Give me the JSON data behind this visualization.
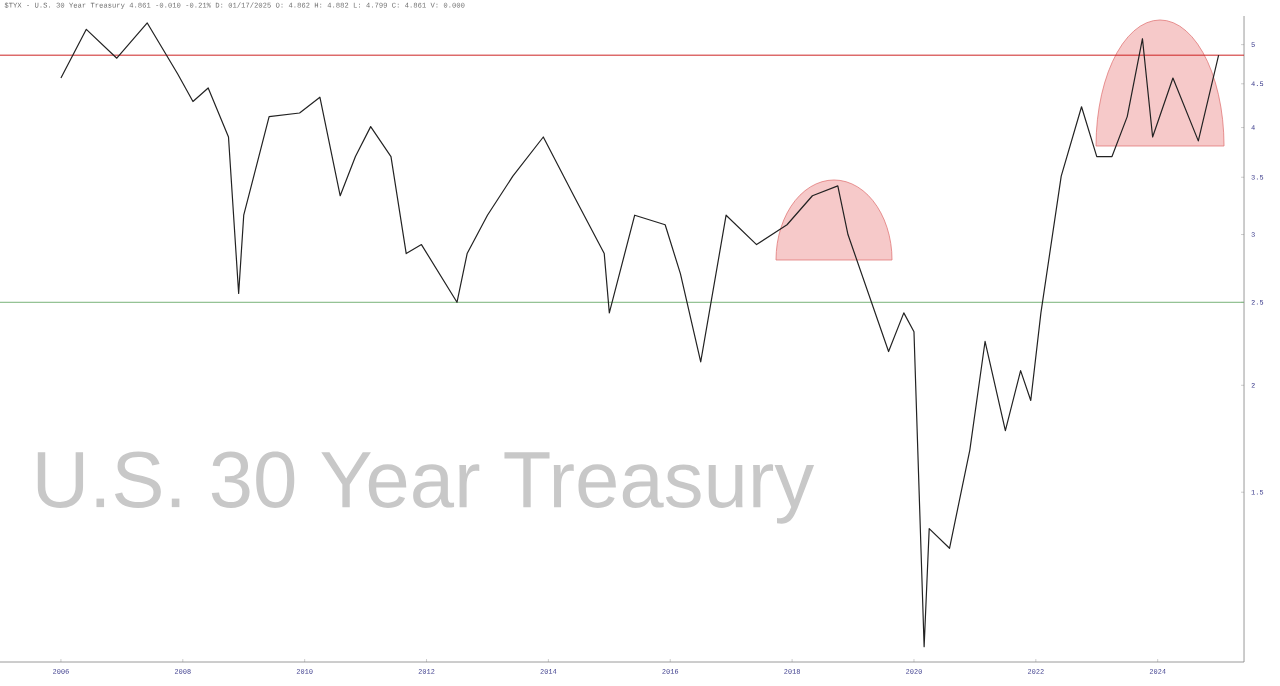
{
  "chart_data": {
    "type": "line",
    "title": "U.S. 30 Year Treasury",
    "subtitle": "$TYX - U.S. 30 Year Treasury 4.861 -0.010 -0.21% D: 01/17/2025 O: 4.862 H: 4.882 L: 4.799 C: 4.861 V: 0.000",
    "x": [
      "2006-01",
      "2006-06",
      "2006-12",
      "2007-06",
      "2007-12",
      "2008-03",
      "2008-06",
      "2008-10",
      "2008-12",
      "2009-01",
      "2009-06",
      "2009-12",
      "2010-04",
      "2010-08",
      "2010-11",
      "2011-02",
      "2011-06",
      "2011-09",
      "2011-12",
      "2012-07",
      "2012-09",
      "2013-01",
      "2013-06",
      "2013-12",
      "2014-06",
      "2014-12",
      "2015-01",
      "2015-06",
      "2015-12",
      "2016-03",
      "2016-07",
      "2016-12",
      "2017-06",
      "2017-12",
      "2018-05",
      "2018-10",
      "2018-12",
      "2019-08",
      "2019-11",
      "2020-01",
      "2020-03",
      "2020-04",
      "2020-08",
      "2020-12",
      "2021-03",
      "2021-07",
      "2021-10",
      "2021-12",
      "2022-02",
      "2022-06",
      "2022-10",
      "2023-01",
      "2023-04",
      "2023-07",
      "2023-10",
      "2023-12",
      "2024-04",
      "2024-09",
      "2025-01"
    ],
    "series": [
      {
        "color": "#222222",
        "values": [
          4.57,
          5.21,
          4.82,
          5.3,
          4.62,
          4.29,
          4.45,
          3.9,
          2.56,
          3.16,
          4.12,
          4.16,
          4.34,
          3.33,
          3.7,
          4.01,
          3.7,
          2.85,
          2.92,
          2.5,
          2.85,
          3.16,
          3.51,
          3.9,
          3.33,
          2.85,
          2.43,
          3.16,
          3.08,
          2.7,
          2.13,
          3.16,
          2.92,
          3.08,
          3.33,
          3.42,
          3.0,
          2.19,
          2.43,
          2.31,
          0.99,
          1.36,
          1.29,
          1.68,
          2.25,
          1.77,
          2.08,
          1.92,
          2.43,
          3.51,
          4.23,
          3.7,
          3.7,
          4.12,
          5.08,
          3.9,
          4.57,
          3.86,
          4.86
        ]
      }
    ],
    "xlim": [
      "2005-01",
      "2025-06"
    ],
    "xticks": [
      {
        "value": "2006",
        "label": "2006"
      },
      {
        "value": "2008",
        "label": "2008"
      },
      {
        "value": "2010",
        "label": "2010"
      },
      {
        "value": "2012",
        "label": "2012"
      },
      {
        "value": "2014",
        "label": "2014"
      },
      {
        "value": "2016",
        "label": "2016"
      },
      {
        "value": "2018",
        "label": "2018"
      },
      {
        "value": "2020",
        "label": "2020"
      },
      {
        "value": "2022",
        "label": "2022"
      },
      {
        "value": "2024",
        "label": "2024"
      }
    ],
    "ylim": [
      0.95,
      5.4
    ],
    "yticks": [
      1.5,
      2,
      2.5,
      3,
      3.5,
      4,
      4.5,
      5
    ],
    "log": "y",
    "ref_lines": [
      {
        "axis": "y",
        "value": 4.86,
        "color": "#cc2222"
      },
      {
        "axis": "y",
        "value": 2.5,
        "color": "#77b377"
      }
    ]
  }
}
